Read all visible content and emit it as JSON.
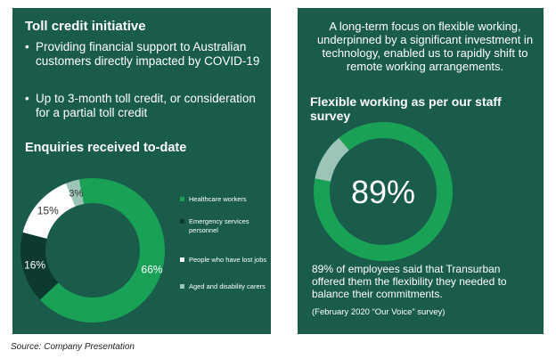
{
  "left": {
    "title": "Toll credit initiative",
    "bullets": [
      "Providing financial support to Australian customers directly impacted by COVID-19",
      "Up to 3-month toll credit, or consideration for a partial toll credit"
    ],
    "bullet_glyph": "•"
  },
  "chart_data": [
    {
      "type": "pie",
      "title": "Enquiries received to-date",
      "legend_position": "right",
      "slices": [
        {
          "name": "Healthcare workers",
          "value": 66,
          "label": "66%",
          "color": "#19a255"
        },
        {
          "name": "Emergency services personnel",
          "value": 16,
          "label": "16%",
          "color": "#0d3a30"
        },
        {
          "name": "People who have lost jobs",
          "value": 15,
          "label": "15%",
          "color": "#ffffff"
        },
        {
          "name": "Aged and disability carers",
          "value": 3,
          "label": "3%",
          "color": "#9cc5b8"
        }
      ]
    },
    {
      "type": "pie",
      "title": "Flexible working as per our staff survey",
      "center_label": "89%",
      "slices": [
        {
          "value": 89,
          "color": "#19a255"
        },
        {
          "value": 11,
          "color": "#9cc5b8"
        }
      ]
    }
  ],
  "right": {
    "intro": "A long-term focus on flexible working, underpinned by a significant investment in technology, enabled us to rapidly shift to remote working arrangements.",
    "description": "89% of employees said that Transurban offered them the flexibility they needed to balance their commitments.",
    "note": "(February 2020 “Our Voice” survey)"
  },
  "source": "Source: Company Presentation",
  "colors": {
    "panel": "#1a5c4c",
    "accent": "#19a255"
  }
}
